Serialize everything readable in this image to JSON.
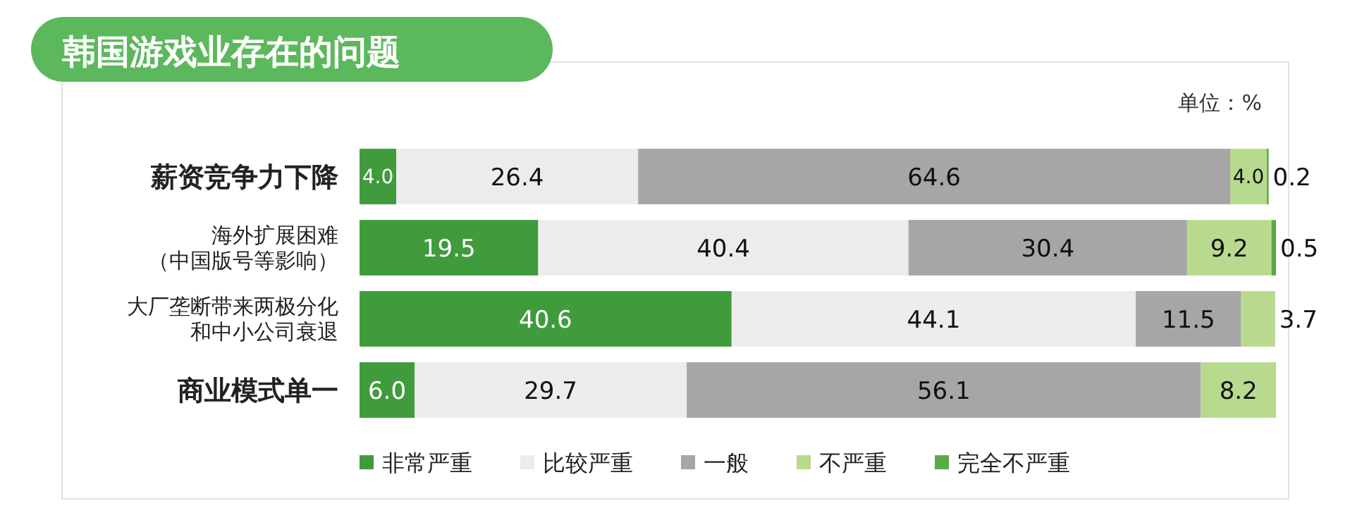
{
  "chart_data": {
    "type": "bar",
    "orientation": "horizontal",
    "stacked": true,
    "legend": "bottom",
    "title": "韩国游戏业存在的问题",
    "annotations": [
      "单位：%"
    ],
    "categories": [
      "薪资竞争力下降",
      "海外扩展困难（中国版号等影响）",
      "大厂垄断带来两极分化和中小公司衰退",
      "商业模式单一"
    ],
    "series": [
      {
        "name": "非常严重",
        "color": "#3f9b3c",
        "values": [
          4.0,
          19.5,
          40.6,
          6.0
        ],
        "value_labels": [
          "4.0",
          "19.5",
          "40.6",
          "6.0"
        ]
      },
      {
        "name": "比较严重",
        "color": "#ececec",
        "values": [
          26.4,
          40.4,
          44.1,
          29.7
        ],
        "value_labels": [
          "26.4",
          "40.4",
          "44.1",
          "29.7"
        ]
      },
      {
        "name": "一般",
        "color": "#a6a6a6",
        "values": [
          64.6,
          30.4,
          11.5,
          56.1
        ],
        "value_labels": [
          "64.6",
          "30.4",
          "11.5",
          "56.1"
        ]
      },
      {
        "name": "不严重",
        "color": "#b8da8e",
        "values": [
          4.0,
          9.2,
          3.7,
          8.2
        ],
        "value_labels": [
          "4.0",
          "9.2",
          "3.7",
          "8.2"
        ]
      },
      {
        "name": "完全不严重",
        "color": "#5aab45",
        "values": [
          0.2,
          0.5,
          null,
          null
        ],
        "value_labels": [
          "0.2",
          "0.5",
          null,
          null
        ]
      }
    ]
  }
}
